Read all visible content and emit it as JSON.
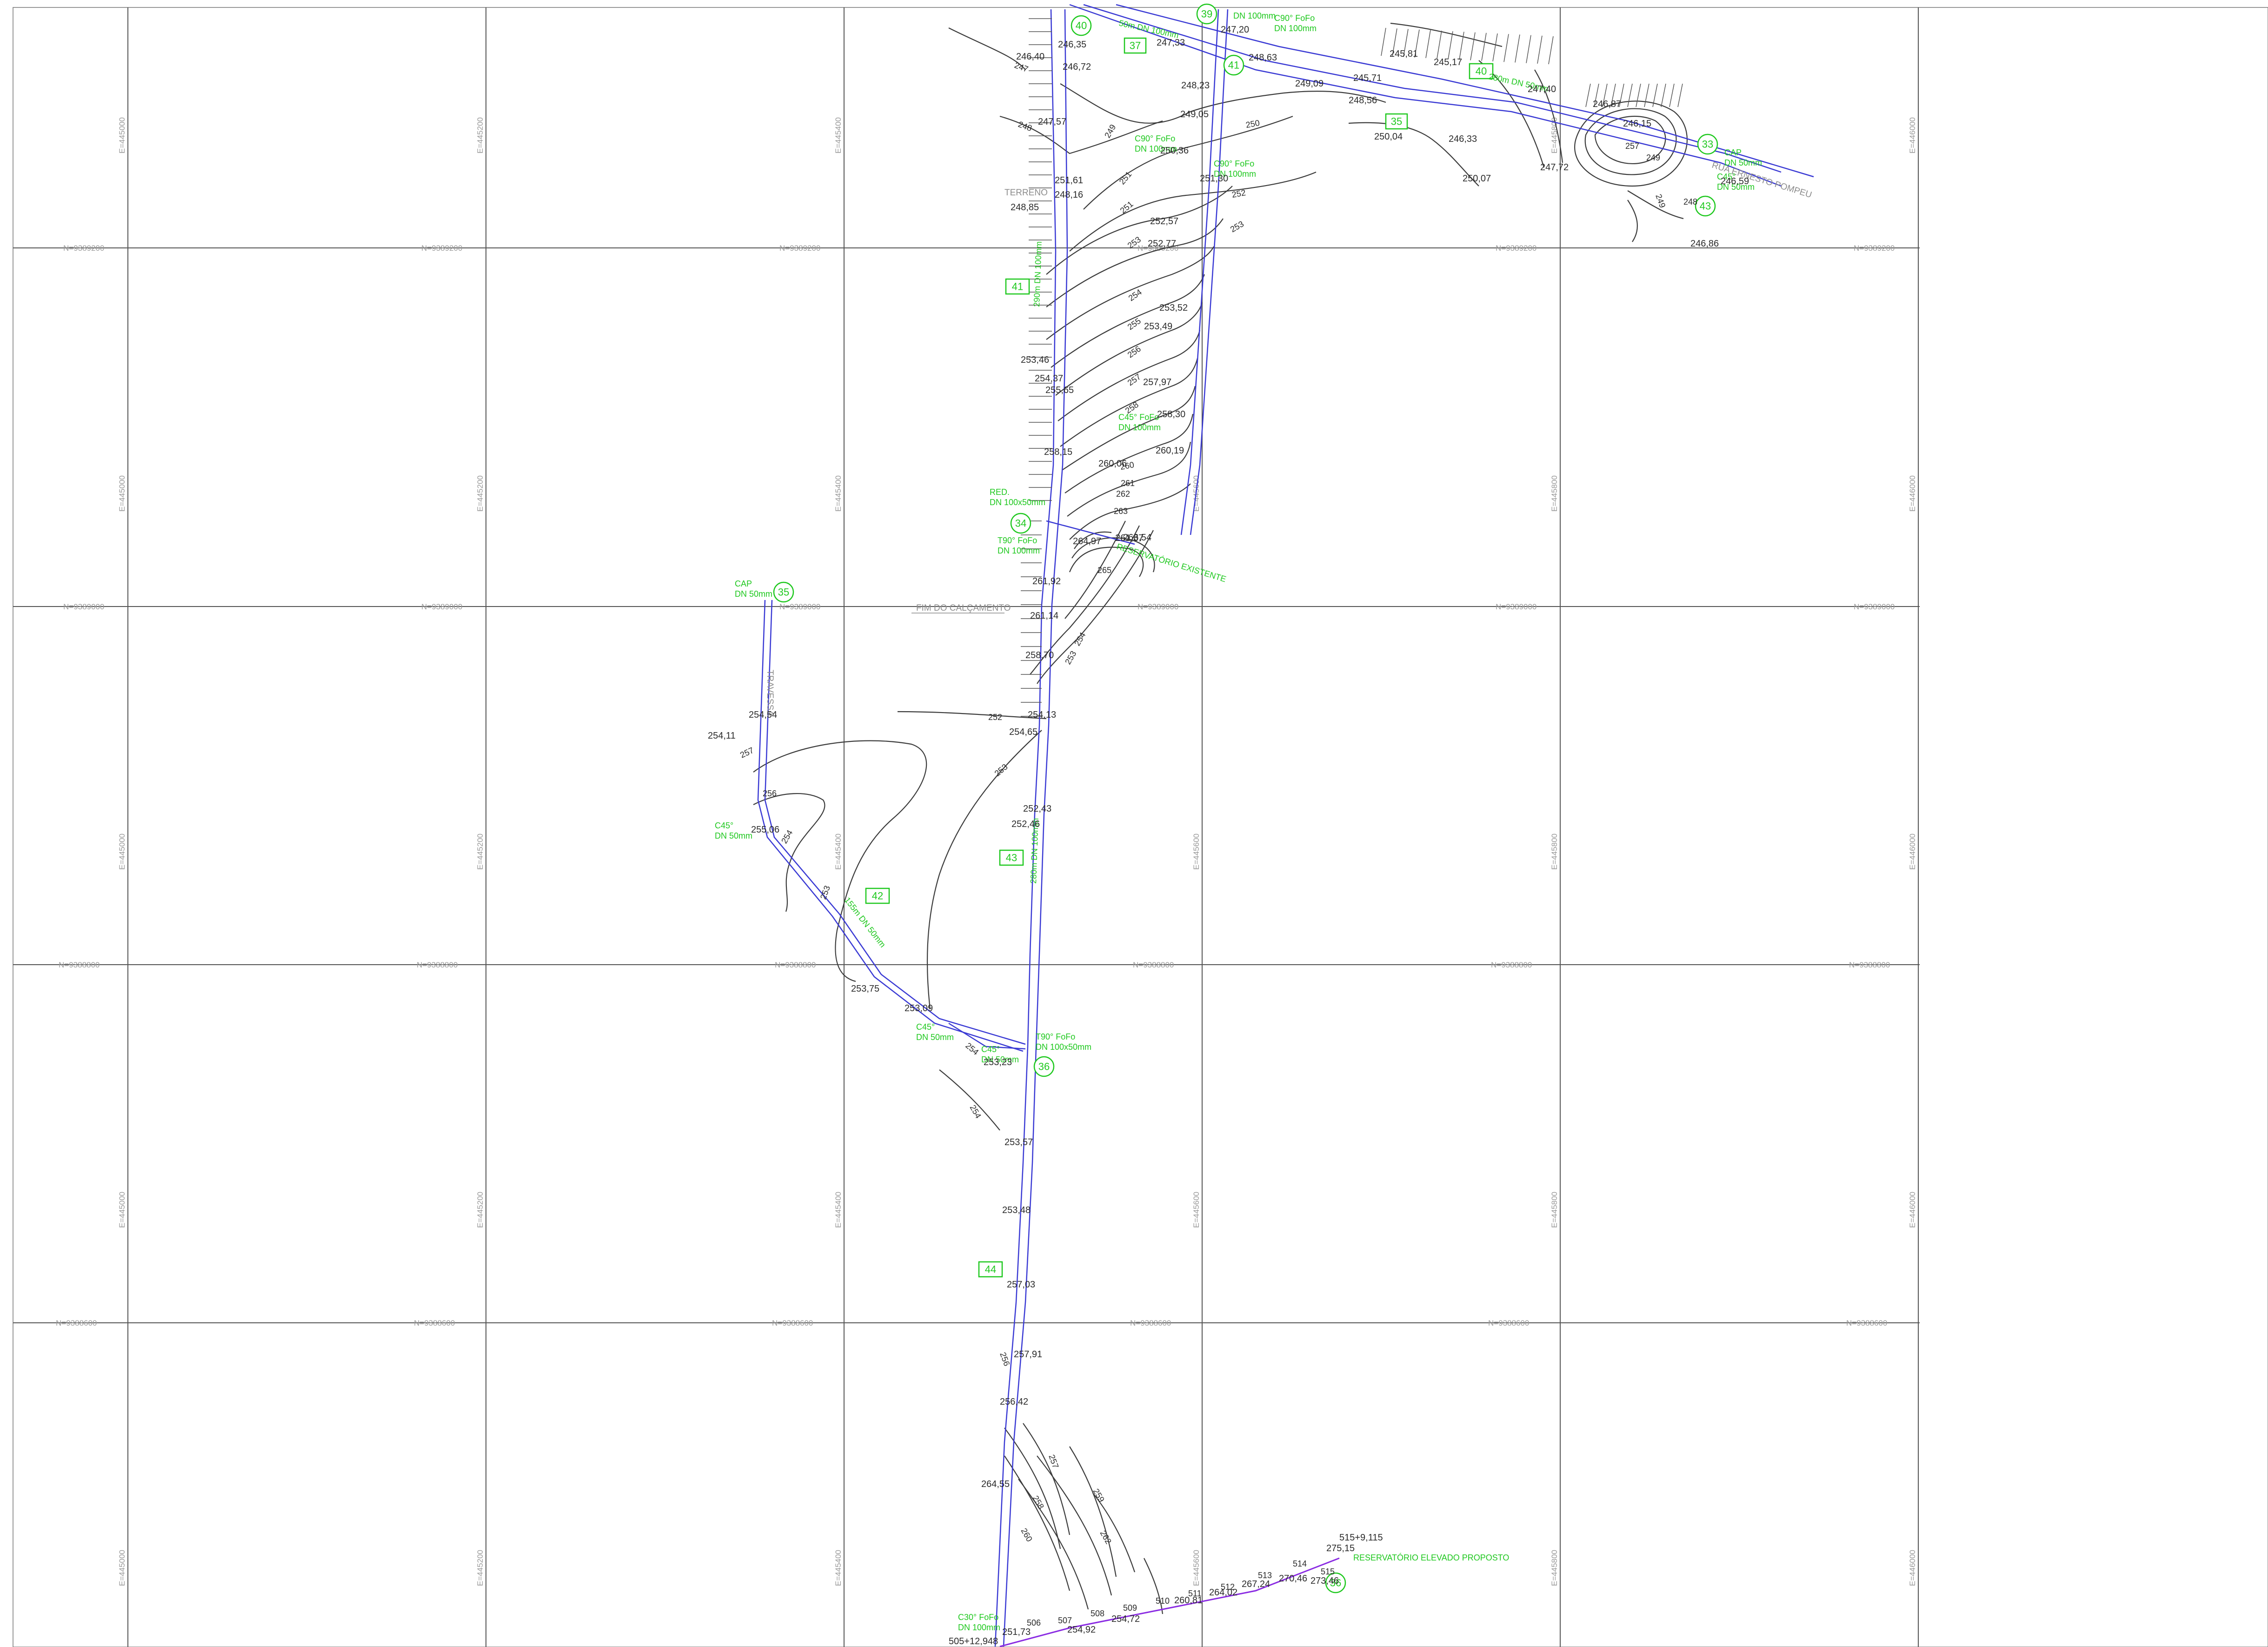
{
  "colors": {
    "grid": "#555555",
    "pipe": "#3a3ad4",
    "pipe_proposed": "#8a2be2",
    "annotation": "#1ec81e",
    "contour": "#3b3b3b",
    "text": "#2a2a2a"
  },
  "grid": {
    "northing_labels": [
      "N=9389200",
      "N=9389000",
      "N=9388800",
      "N=9388600"
    ],
    "easting_labels": [
      "E=445000",
      "E=445200",
      "E=445400",
      "E=445600",
      "E=445800",
      "E=446000"
    ]
  },
  "streets": [
    {
      "label": "TERRENO"
    },
    {
      "label": "FIM DO CALÇAMENTO"
    },
    {
      "label": "TRAVESSA"
    },
    {
      "label": "RUA ERNESTO POMPEU"
    }
  ],
  "structures": [
    {
      "label": "RESERVATÓRIO EXISTENTE"
    },
    {
      "label": "RESERVATÓRIO ELEVADO PROPOSTO"
    }
  ],
  "nodes": [
    "40",
    "39",
    "37",
    "41",
    "35",
    "34",
    "35",
    "36",
    "36",
    "33",
    "43"
  ],
  "segments": [
    "40",
    "41",
    "42",
    "43",
    "44"
  ],
  "fittings": [
    {
      "name": "C90° FoFo",
      "spec": "DN 100mm"
    },
    {
      "name": "C90° FoFo",
      "spec": "DN 100mm"
    },
    {
      "name": "C45° FoFo",
      "spec": "DN 100mm"
    },
    {
      "name": "RED.",
      "spec": "DN 100x50mm"
    },
    {
      "name": "T90° FoFo",
      "spec": "DN 100mm"
    },
    {
      "name": "CAP",
      "spec": "DN 50mm"
    },
    {
      "name": "C45°",
      "spec": "DN 50mm"
    },
    {
      "name": "C45°",
      "spec": "DN 50mm"
    },
    {
      "name": "C45°",
      "spec": "DN 50mm"
    },
    {
      "name": "T90° FoFo",
      "spec": "DN 100x50mm"
    },
    {
      "name": "CAP",
      "spec": "DN 50mm"
    },
    {
      "name": "C45°",
      "spec": "DN 50mm"
    },
    {
      "name": "C30° FoFo",
      "spec": "DN 100mm"
    },
    {
      "name": "DN 100mm",
      "spec": "DN 100mm"
    },
    {
      "name": "C90° FoFo",
      "spec": "DN 100mm"
    }
  ],
  "pipe_labels": [
    "50m DN 100mm",
    "280m DN 50mm",
    "290m DN 100mm",
    "280m DN 100mm",
    "155m DN 50mm"
  ],
  "elevations": [
    "246,40",
    "246,35",
    "246,72",
    "247,33",
    "247,20",
    "248,23",
    "248,63",
    "249,09",
    "247,57",
    "249,05",
    "250,36",
    "248,16",
    "248,85",
    "251,30",
    "251,61",
    "245,81",
    "245,17",
    "245,71",
    "248,56",
    "250,04",
    "246,33",
    "250,07",
    "247,72",
    "247,40",
    "246,87",
    "246,15",
    "246,59",
    "246,86",
    "252,57",
    "252,77",
    "253,52",
    "253,46",
    "253,49",
    "254,37",
    "255,65",
    "257,97",
    "258,30",
    "258,15",
    "260,19",
    "260,06",
    "261,37",
    "264,97",
    "266,54",
    "261,92",
    "261,14",
    "258,70",
    "254,13",
    "254,65",
    "252,43",
    "252,46",
    "254,54",
    "254,11",
    "255,06",
    "253,75",
    "253,09",
    "253,23",
    "253,57",
    "253,48",
    "257,03",
    "257,91",
    "256,42",
    "264,55",
    "275,15",
    "273,46",
    "270,46",
    "267,24",
    "264,02",
    "260,81",
    "254,92",
    "254,72",
    "251,73"
  ],
  "contour_labels": [
    "247",
    "248",
    "249",
    "250",
    "251",
    "252",
    "253",
    "254",
    "255",
    "256",
    "257",
    "258",
    "259",
    "260",
    "261",
    "262",
    "263",
    "264",
    "265",
    "506",
    "507",
    "508",
    "509",
    "510",
    "511",
    "512",
    "513",
    "514",
    "515"
  ],
  "stations": [
    {
      "label": "515+9,115"
    },
    {
      "label": "505+12,948"
    }
  ]
}
